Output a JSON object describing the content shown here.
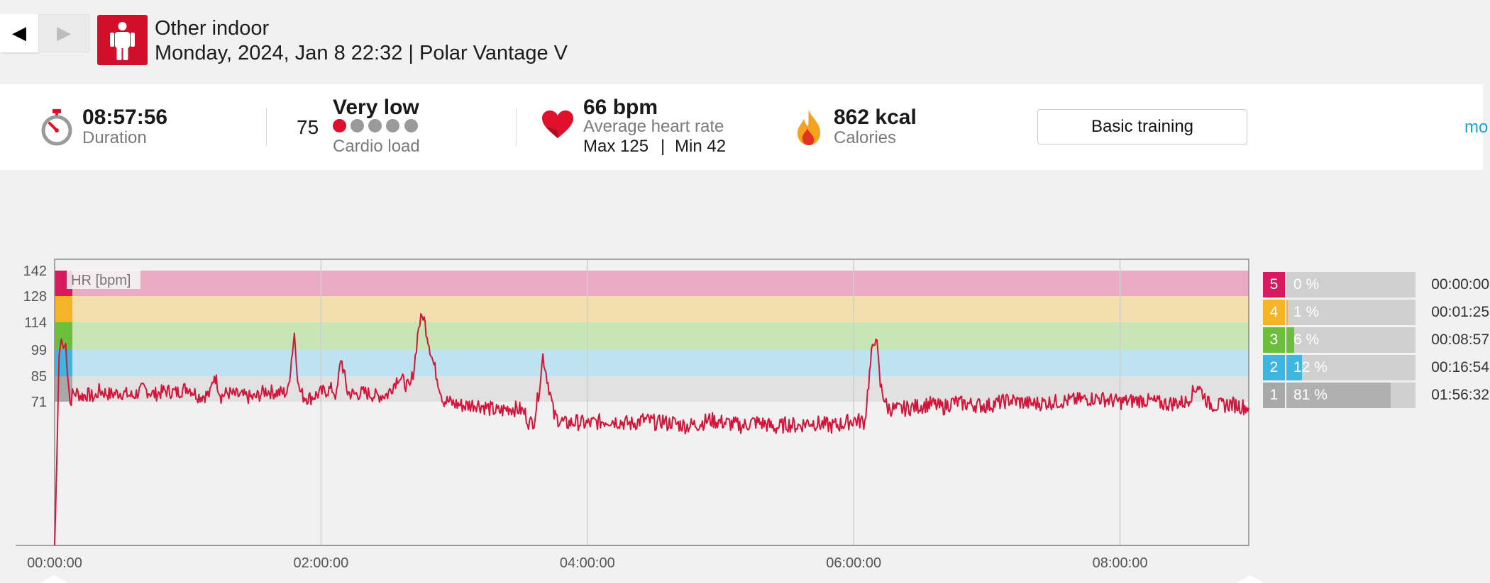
{
  "header": {
    "back_icon": "◀",
    "forward_icon": "▶",
    "sport_icon": "person-standing-icon",
    "title": "Other indoor",
    "subtitle": "Monday, 2024, Jan 8 22:32 | Polar Vantage V"
  },
  "summary": {
    "duration": {
      "value": "08:57:56",
      "label": "Duration",
      "icon": "stopwatch-icon"
    },
    "cardio": {
      "number": "75",
      "level": "Very low",
      "label": "Cardio load",
      "dots_filled": 1,
      "dots_total": 5
    },
    "heart_rate": {
      "value": "66 bpm",
      "label": "Average heart rate",
      "max": "Max 125",
      "sep": "|",
      "min": "Min 42",
      "icon": "heart-icon"
    },
    "calories": {
      "value": "862 kcal",
      "label": "Calories",
      "icon": "flame-icon"
    },
    "training_button": "Basic training",
    "more_link": "mo"
  },
  "colors": {
    "accent": "#d0102b",
    "hr_line": "#d4153a",
    "zone5": "#d81b60",
    "zone4": "#f5b427",
    "zone3": "#6cbf3c",
    "zone2": "#3fb6e0",
    "zone1": "#a8a8a8",
    "link": "#1aa0d8"
  },
  "chart_data": {
    "type": "line",
    "title": "",
    "ylabel": "HR [bpm]",
    "xlabel": "",
    "x_unit": "elapsed time",
    "x_tick_labels": [
      "00:00:00",
      "02:00:00",
      "04:00:00",
      "06:00:00",
      "08:00:00"
    ],
    "y_tick_labels": [
      "142",
      "128",
      "114",
      "99",
      "85",
      "71"
    ],
    "ylim": [
      0,
      147
    ],
    "xlim_minutes": [
      0,
      538
    ],
    "grid": true,
    "legend": "none",
    "zone_bands": [
      {
        "zone": 5,
        "from": 128,
        "to": 142
      },
      {
        "zone": 4,
        "from": 114,
        "to": 128
      },
      {
        "zone": 3,
        "from": 99,
        "to": 114
      },
      {
        "zone": 2,
        "from": 85,
        "to": 99
      },
      {
        "zone": 1,
        "from": 71,
        "to": 85
      }
    ],
    "series": [
      {
        "x_minutes": [
          0,
          1,
          2,
          3,
          4,
          5,
          6,
          7,
          8,
          10,
          12,
          15,
          18,
          20,
          25,
          30,
          35,
          40,
          45,
          50,
          55,
          60,
          65,
          70,
          72,
          75,
          78,
          80,
          85,
          90,
          95,
          100,
          105,
          108,
          110,
          112,
          115,
          120,
          125,
          127,
          129,
          132,
          135,
          140,
          145,
          150,
          155,
          160,
          162,
          164,
          166,
          170,
          175,
          180,
          185,
          190,
          195,
          200,
          205,
          210,
          212,
          214,
          216,
          218,
          220,
          225,
          230,
          235,
          240,
          245,
          250,
          255,
          260,
          265,
          270,
          272,
          274,
          275,
          276,
          278,
          280,
          285,
          290,
          295,
          300,
          305,
          310,
          315,
          320,
          325,
          330,
          335,
          340,
          345,
          350,
          355,
          360,
          365,
          368,
          370,
          372,
          375,
          380,
          385,
          390,
          395,
          400,
          405,
          410,
          420,
          430,
          440,
          450,
          460,
          470,
          480,
          490,
          500,
          510,
          515,
          520,
          525,
          530,
          538
        ],
        "values": [
          0,
          42,
          96,
          105,
          100,
          102,
          85,
          70,
          75,
          76,
          74,
          75,
          73,
          77,
          75,
          76,
          74,
          78,
          75,
          77,
          76,
          79,
          74,
          75,
          86,
          74,
          76,
          75,
          74,
          73,
          77,
          76,
          76,
          108,
          78,
          74,
          73,
          76,
          78,
          74,
          95,
          76,
          75,
          76,
          74,
          75,
          85,
          78,
          90,
          112,
          118,
          95,
          72,
          70,
          69,
          70,
          68,
          66,
          68,
          67,
          65,
          60,
          62,
          75,
          96,
          64,
          60,
          61,
          60,
          61,
          62,
          61,
          60,
          62,
          61,
          60,
          62,
          61,
          60,
          61,
          60,
          59,
          60,
          62,
          61,
          60,
          59,
          61,
          60,
          58,
          60,
          59,
          61,
          60,
          59,
          60,
          62,
          61,
          96,
          108,
          80,
          68,
          67,
          68,
          69,
          70,
          68,
          71,
          70,
          69,
          72,
          70,
          71,
          72,
          73,
          71,
          72,
          70,
          71,
          80,
          70,
          69,
          70,
          68
        ]
      }
    ],
    "zones": [
      {
        "num": "5",
        "pct": "0 %",
        "fraction": 0.0,
        "time": "00:00:00"
      },
      {
        "num": "4",
        "pct": "1 %",
        "fraction": 0.01,
        "time": "00:01:25"
      },
      {
        "num": "3",
        "pct": "6 %",
        "fraction": 0.06,
        "time": "00:08:57"
      },
      {
        "num": "2",
        "pct": "12 %",
        "fraction": 0.12,
        "time": "00:16:54"
      },
      {
        "num": "1",
        "pct": "81 %",
        "fraction": 0.81,
        "time": "01:56:32"
      }
    ]
  }
}
